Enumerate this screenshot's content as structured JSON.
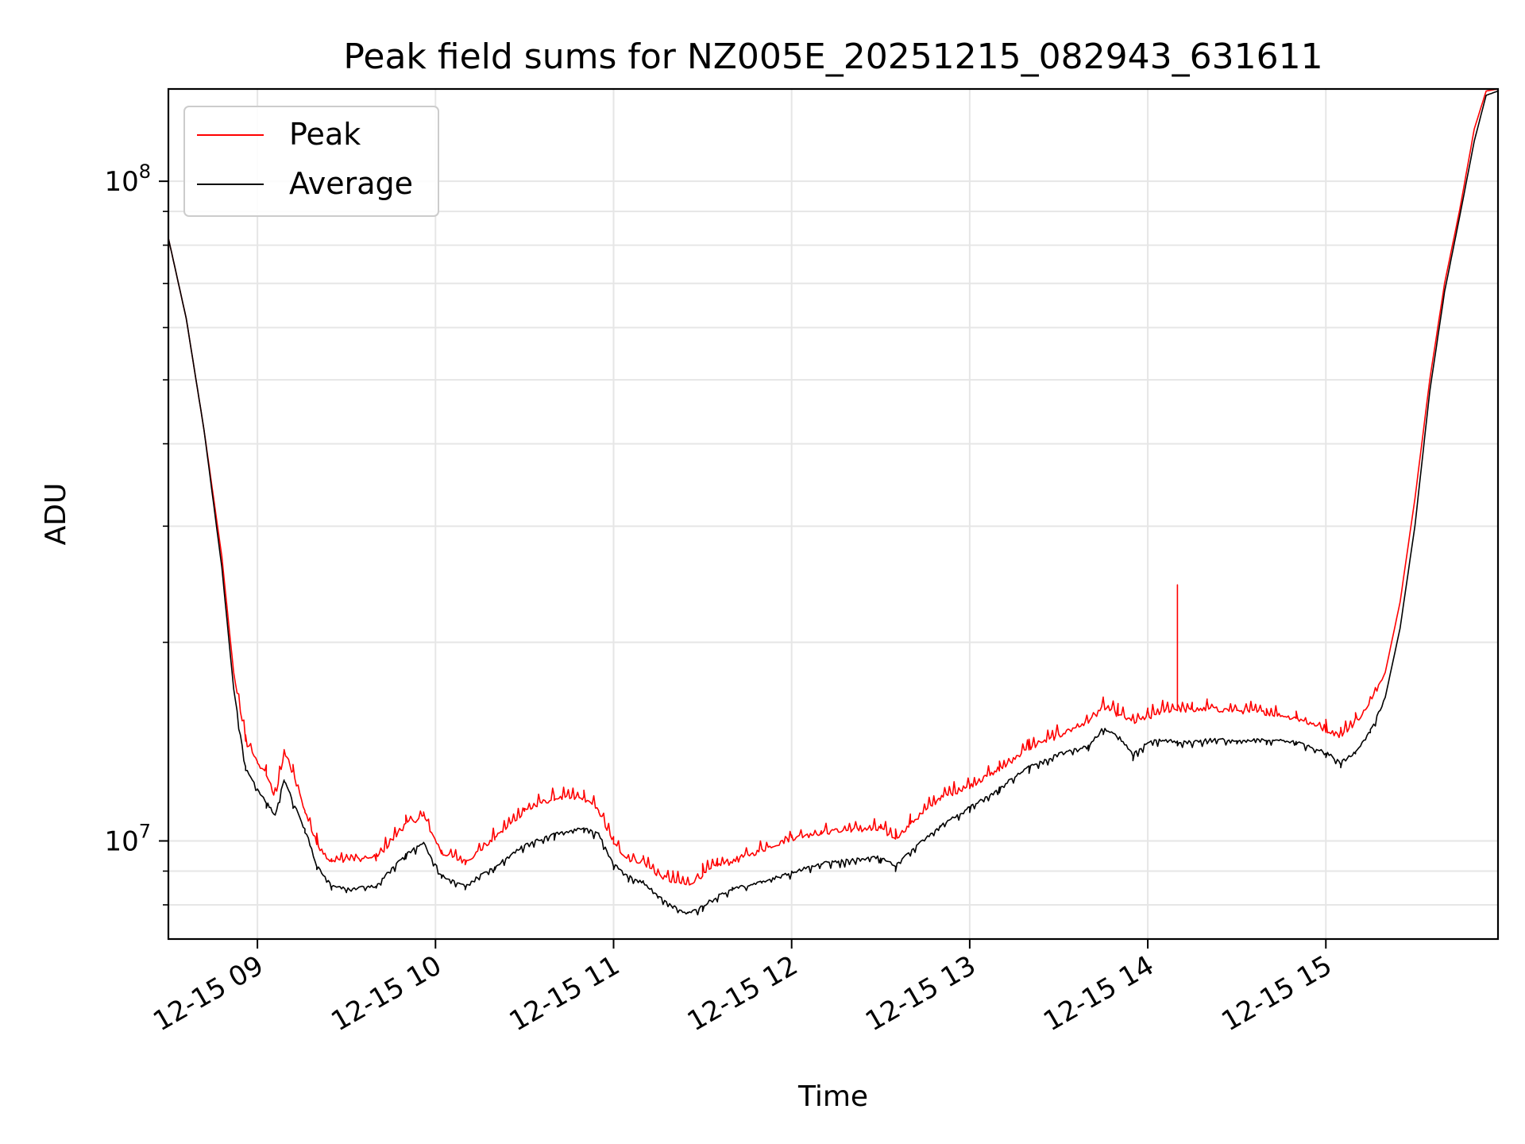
{
  "chart_data": {
    "type": "line",
    "title": "Peak field sums for NZ005E_20251215_082943_631611",
    "xlabel": "Time",
    "ylabel": "ADU",
    "x_scale": "time",
    "y_scale": "log",
    "xlim": [
      "2025-12-15 08:30",
      "2025-12-15 15:58"
    ],
    "ylim": [
      7100000,
      138000000
    ],
    "grid": true,
    "legend_position": "top-left",
    "x_ticks": [
      {
        "t": "2025-12-15 09:00",
        "label": "12-15 09"
      },
      {
        "t": "2025-12-15 10:00",
        "label": "12-15 10"
      },
      {
        "t": "2025-12-15 11:00",
        "label": "12-15 11"
      },
      {
        "t": "2025-12-15 12:00",
        "label": "12-15 12"
      },
      {
        "t": "2025-12-15 13:00",
        "label": "12-15 13"
      },
      {
        "t": "2025-12-15 14:00",
        "label": "12-15 14"
      },
      {
        "t": "2025-12-15 15:00",
        "label": "12-15 15"
      }
    ],
    "y_major_ticks": [
      {
        "value": 10000000,
        "base": "10",
        "exp": "7"
      },
      {
        "value": 100000000,
        "base": "10",
        "exp": "8"
      }
    ],
    "y_minor_ticks": [
      8000000,
      9000000,
      20000000,
      30000000,
      40000000,
      50000000,
      60000000,
      70000000,
      80000000,
      90000000
    ],
    "series": [
      {
        "name": "Peak",
        "color": "#ff0000",
        "x": [
          "2025-12-15 08:30",
          "2025-12-15 08:36",
          "2025-12-15 08:42",
          "2025-12-15 08:48",
          "2025-12-15 08:52",
          "2025-12-15 08:56",
          "2025-12-15 09:00",
          "2025-12-15 09:03",
          "2025-12-15 09:06",
          "2025-12-15 09:09",
          "2025-12-15 09:12",
          "2025-12-15 09:16",
          "2025-12-15 09:20",
          "2025-12-15 09:25",
          "2025-12-15 09:30",
          "2025-12-15 09:40",
          "2025-12-15 09:50",
          "2025-12-15 09:56",
          "2025-12-15 10:02",
          "2025-12-15 10:10",
          "2025-12-15 10:20",
          "2025-12-15 10:30",
          "2025-12-15 10:40",
          "2025-12-15 10:50",
          "2025-12-15 10:55",
          "2025-12-15 11:00",
          "2025-12-15 11:05",
          "2025-12-15 11:10",
          "2025-12-15 11:15",
          "2025-12-15 11:20",
          "2025-12-15 11:25",
          "2025-12-15 11:30",
          "2025-12-15 11:35",
          "2025-12-15 11:40",
          "2025-12-15 11:50",
          "2025-12-15 12:00",
          "2025-12-15 12:10",
          "2025-12-15 12:20",
          "2025-12-15 12:30",
          "2025-12-15 12:35",
          "2025-12-15 12:40",
          "2025-12-15 12:50",
          "2025-12-15 13:00",
          "2025-12-15 13:10",
          "2025-12-15 13:20",
          "2025-12-15 13:30",
          "2025-12-15 13:40",
          "2025-12-15 13:45",
          "2025-12-15 13:50",
          "2025-12-15 13:55",
          "2025-12-15 14:00",
          "2025-12-15 14:05",
          "2025-12-15 14:10",
          "2025-12-15 14:10",
          "2025-12-15 14:10",
          "2025-12-15 14:15",
          "2025-12-15 14:20",
          "2025-12-15 14:30",
          "2025-12-15 14:40",
          "2025-12-15 14:50",
          "2025-12-15 15:00",
          "2025-12-15 15:05",
          "2025-12-15 15:10",
          "2025-12-15 15:15",
          "2025-12-15 15:20",
          "2025-12-15 15:25",
          "2025-12-15 15:30",
          "2025-12-15 15:35",
          "2025-12-15 15:40",
          "2025-12-15 15:45",
          "2025-12-15 15:50",
          "2025-12-15 15:54",
          "2025-12-15 15:58"
        ],
        "y": [
          82000000,
          62000000,
          42000000,
          27000000,
          18000000,
          14000000,
          13000000,
          12500000,
          11500000,
          13500000,
          12500000,
          11000000,
          9800000,
          9200000,
          9300000,
          9300000,
          10500000,
          10800000,
          9500000,
          9200000,
          10000000,
          11000000,
          11500000,
          11500000,
          11000000,
          9800000,
          9300000,
          9200000,
          8800000,
          8600000,
          8500000,
          8800000,
          9100000,
          9200000,
          9600000,
          10000000,
          10200000,
          10300000,
          10300000,
          10000000,
          10500000,
          11500000,
          12000000,
          12700000,
          13700000,
          14300000,
          15000000,
          15800000,
          15400000,
          15000000,
          15200000,
          15600000,
          15700000,
          24000000,
          15700000,
          15600000,
          15700000,
          15600000,
          15500000,
          15200000,
          14600000,
          14300000,
          15000000,
          16000000,
          18000000,
          23000000,
          33000000,
          50000000,
          70000000,
          90000000,
          120000000,
          137000000,
          138000000
        ]
      },
      {
        "name": "Average",
        "color": "#000000",
        "x": [
          "2025-12-15 08:30",
          "2025-12-15 08:36",
          "2025-12-15 08:42",
          "2025-12-15 08:48",
          "2025-12-15 08:52",
          "2025-12-15 08:56",
          "2025-12-15 09:00",
          "2025-12-15 09:03",
          "2025-12-15 09:06",
          "2025-12-15 09:09",
          "2025-12-15 09:12",
          "2025-12-15 09:16",
          "2025-12-15 09:20",
          "2025-12-15 09:25",
          "2025-12-15 09:30",
          "2025-12-15 09:40",
          "2025-12-15 09:50",
          "2025-12-15 09:56",
          "2025-12-15 10:02",
          "2025-12-15 10:10",
          "2025-12-15 10:20",
          "2025-12-15 10:30",
          "2025-12-15 10:40",
          "2025-12-15 10:50",
          "2025-12-15 10:55",
          "2025-12-15 11:00",
          "2025-12-15 11:05",
          "2025-12-15 11:10",
          "2025-12-15 11:15",
          "2025-12-15 11:20",
          "2025-12-15 11:25",
          "2025-12-15 11:30",
          "2025-12-15 11:35",
          "2025-12-15 11:40",
          "2025-12-15 11:50",
          "2025-12-15 12:00",
          "2025-12-15 12:10",
          "2025-12-15 12:20",
          "2025-12-15 12:30",
          "2025-12-15 12:35",
          "2025-12-15 12:40",
          "2025-12-15 12:50",
          "2025-12-15 13:00",
          "2025-12-15 13:10",
          "2025-12-15 13:20",
          "2025-12-15 13:30",
          "2025-12-15 13:40",
          "2025-12-15 13:45",
          "2025-12-15 13:50",
          "2025-12-15 13:55",
          "2025-12-15 14:00",
          "2025-12-15 14:05",
          "2025-12-15 14:10",
          "2025-12-15 14:15",
          "2025-12-15 14:20",
          "2025-12-15 14:30",
          "2025-12-15 14:40",
          "2025-12-15 14:50",
          "2025-12-15 15:00",
          "2025-12-15 15:05",
          "2025-12-15 15:10",
          "2025-12-15 15:15",
          "2025-12-15 15:20",
          "2025-12-15 15:25",
          "2025-12-15 15:30",
          "2025-12-15 15:35",
          "2025-12-15 15:40",
          "2025-12-15 15:45",
          "2025-12-15 15:50",
          "2025-12-15 15:54",
          "2025-12-15 15:58"
        ],
        "y": [
          82000000,
          62000000,
          42000000,
          26000000,
          17000000,
          13000000,
          12000000,
          11500000,
          11000000,
          12500000,
          11500000,
          10500000,
          9200000,
          8600000,
          8500000,
          8600000,
          9600000,
          10000000,
          8900000,
          8600000,
          9200000,
          9900000,
          10300000,
          10500000,
          10300000,
          9300000,
          8900000,
          8700000,
          8300000,
          8000000,
          7800000,
          8000000,
          8300000,
          8500000,
          8700000,
          9000000,
          9300000,
          9400000,
          9500000,
          9200000,
          9700000,
          10600000,
          11300000,
          12100000,
          13000000,
          13600000,
          14000000,
          14900000,
          14500000,
          13600000,
          14200000,
          14300000,
          14200000,
          14200000,
          14300000,
          14300000,
          14300000,
          14200000,
          13700000,
          13200000,
          13700000,
          14800000,
          16500000,
          21000000,
          30000000,
          48000000,
          68000000,
          88000000,
          115000000,
          135000000,
          137000000
        ]
      }
    ]
  }
}
